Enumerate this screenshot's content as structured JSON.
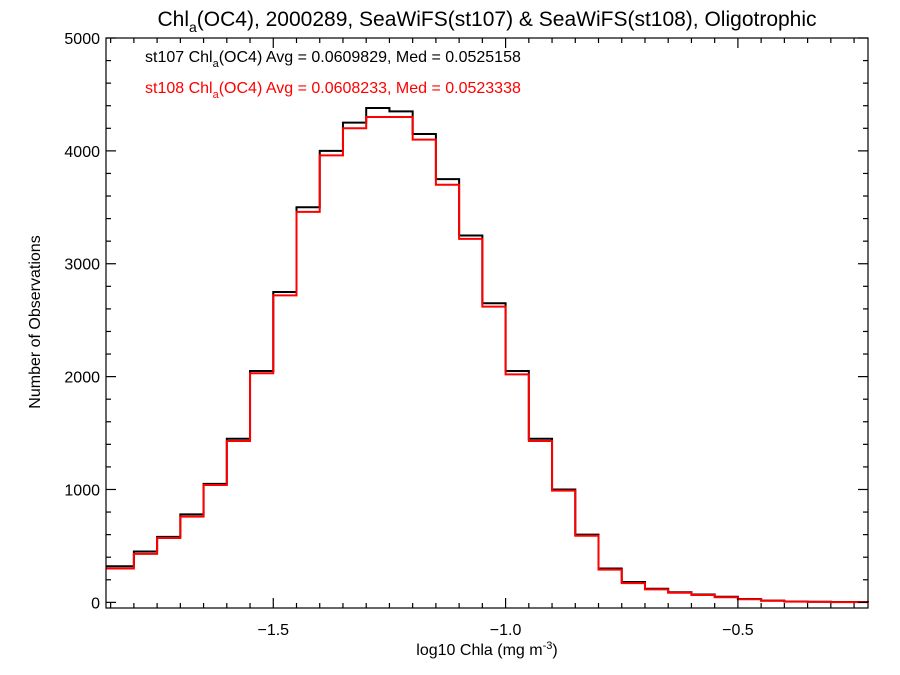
{
  "chart_data": {
    "type": "line",
    "title": {
      "prefix": "Chl",
      "subscript": "a",
      "suffix": "(OC4), 2000289, SeaWiFS(st107) & SeaWiFS(st108), Oligotrophic"
    },
    "xlabel": {
      "main": "log10 Chla (mg m",
      "superscript": "-3",
      "tail": ")"
    },
    "ylabel": "Number of Observations",
    "xlim": [
      -1.86,
      -0.22
    ],
    "ylim": [
      -50,
      5000
    ],
    "xticks": [
      -1.5,
      -1.0,
      -0.5
    ],
    "xtick_labels": [
      "−1.5",
      "−1.0",
      "−0.5"
    ],
    "yticks": [
      0,
      1000,
      2000,
      3000,
      4000,
      5000
    ],
    "ytick_labels": [
      "0",
      "1000",
      "2000",
      "3000",
      "4000",
      "5000"
    ],
    "legend_position": "top-left",
    "x_style": "step",
    "series": [
      {
        "name": "st107",
        "color": "#000000",
        "annotation": {
          "prefix": "st107 Chl",
          "subscript": "a",
          "suffix": "(OC4) Avg = 0.0609829, Med = 0.0525158"
        },
        "x": [
          -1.86,
          -1.8,
          -1.75,
          -1.7,
          -1.65,
          -1.6,
          -1.55,
          -1.5,
          -1.45,
          -1.4,
          -1.35,
          -1.3,
          -1.25,
          -1.2,
          -1.15,
          -1.1,
          -1.05,
          -1.0,
          -0.95,
          -0.9,
          -0.85,
          -0.8,
          -0.75,
          -0.7,
          -0.65,
          -0.6,
          -0.55,
          -0.5,
          -0.45,
          -0.4,
          -0.35,
          -0.3,
          -0.22
        ],
        "y": [
          320,
          450,
          580,
          780,
          1050,
          1450,
          2050,
          2750,
          3500,
          4000,
          4250,
          4380,
          4350,
          4150,
          3750,
          3250,
          2650,
          2050,
          1450,
          1000,
          600,
          300,
          180,
          120,
          90,
          70,
          50,
          30,
          15,
          8,
          5,
          3,
          2
        ]
      },
      {
        "name": "st108",
        "color": "#ff0000",
        "annotation": {
          "prefix": "st108 Chl",
          "subscript": "a",
          "suffix": "(OC4) Avg = 0.0608233, Med = 0.0523338"
        },
        "x": [
          -1.86,
          -1.8,
          -1.75,
          -1.7,
          -1.65,
          -1.6,
          -1.55,
          -1.5,
          -1.45,
          -1.4,
          -1.35,
          -1.3,
          -1.25,
          -1.2,
          -1.15,
          -1.1,
          -1.05,
          -1.0,
          -0.95,
          -0.9,
          -0.85,
          -0.8,
          -0.75,
          -0.7,
          -0.65,
          -0.6,
          -0.55,
          -0.5,
          -0.45,
          -0.4,
          -0.35,
          -0.3,
          -0.22
        ],
        "y": [
          300,
          430,
          570,
          760,
          1040,
          1430,
          2030,
          2720,
          3460,
          3960,
          4200,
          4300,
          4300,
          4100,
          3700,
          3220,
          2620,
          2020,
          1430,
          990,
          590,
          290,
          170,
          115,
          85,
          65,
          45,
          28,
          14,
          7,
          4,
          2,
          1
        ]
      }
    ]
  }
}
